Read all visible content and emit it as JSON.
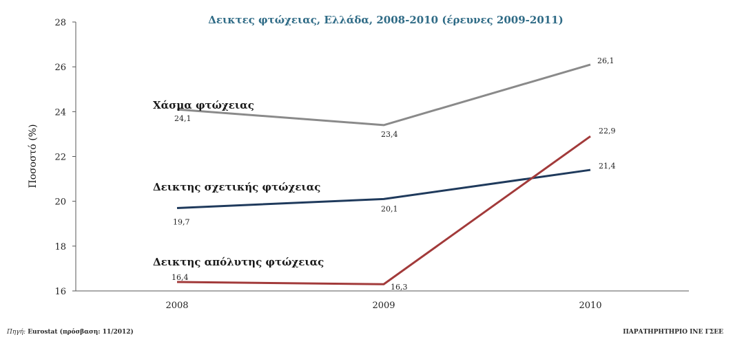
{
  "chart_data": {
    "type": "line",
    "title": "Δεικτες φτώχειας, Ελλάδα, 2008-2010 (έρευνες 2009-2011)",
    "ylabel": "Ποσοστό (%)",
    "xlabel": "",
    "categories": [
      "2008",
      "2009",
      "2010"
    ],
    "ylim": [
      16,
      28
    ],
    "yticks": [
      "16",
      "18",
      "20",
      "22",
      "24",
      "26",
      "28"
    ],
    "grid": false,
    "series": [
      {
        "name": "Χάσμα φτώχειας",
        "color": "#8a8a8a",
        "values": [
          24.1,
          23.4,
          26.1
        ],
        "labels": [
          "24,1",
          "23,4",
          "26,1"
        ]
      },
      {
        "name": "Δεικτης σχετικής φτώχειας",
        "color": "#1f3a5c",
        "values": [
          19.7,
          20.1,
          21.4
        ],
        "labels": [
          "19,7",
          "20,1",
          "21,4"
        ]
      },
      {
        "name": "Δεικτης απόλυτης φτώχειας",
        "color": "#a23a3a",
        "values": [
          16.4,
          16.3,
          22.9
        ],
        "labels": [
          "16,4",
          "16,3",
          "22,9"
        ]
      }
    ]
  },
  "footer": {
    "source_prefix": "Πηγή:",
    "source_text": "Eurostat (πρόσβαση: 11/2012)",
    "credit": "ΠΑΡΑΤΗΡΗΤΗΡΙΟ ΙΝΕ ΓΣΕΕ"
  }
}
